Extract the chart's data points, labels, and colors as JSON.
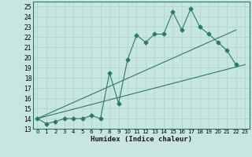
{
  "title": "",
  "xlabel": "Humidex (Indice chaleur)",
  "xlim": [
    -0.5,
    23.5
  ],
  "ylim": [
    13,
    25.5
  ],
  "yticks": [
    13,
    14,
    15,
    16,
    17,
    18,
    19,
    20,
    21,
    22,
    23,
    24,
    25
  ],
  "xticks": [
    0,
    1,
    2,
    3,
    4,
    5,
    6,
    7,
    8,
    9,
    10,
    11,
    12,
    13,
    14,
    15,
    16,
    17,
    18,
    19,
    20,
    21,
    22,
    23
  ],
  "bg_color": "#c8e6e0",
  "grid_color": "#b0d0c8",
  "line_color": "#2a7a6a",
  "jagged_x": [
    0,
    1,
    2,
    3,
    4,
    5,
    6,
    7,
    8,
    9,
    10,
    11,
    12,
    13,
    14,
    15,
    16,
    17,
    18,
    19,
    20,
    21,
    22
  ],
  "jagged_y": [
    14.0,
    13.5,
    13.7,
    14.0,
    14.0,
    14.0,
    14.3,
    14.0,
    18.5,
    15.5,
    19.8,
    22.2,
    21.5,
    22.3,
    22.3,
    24.5,
    22.7,
    24.8,
    23.0,
    22.3,
    21.5,
    20.7,
    19.3
  ],
  "lower_line_x": [
    0,
    23
  ],
  "lower_line_y": [
    14.0,
    19.3
  ],
  "upper_line_x": [
    0,
    22
  ],
  "upper_line_y": [
    14.0,
    22.7
  ]
}
